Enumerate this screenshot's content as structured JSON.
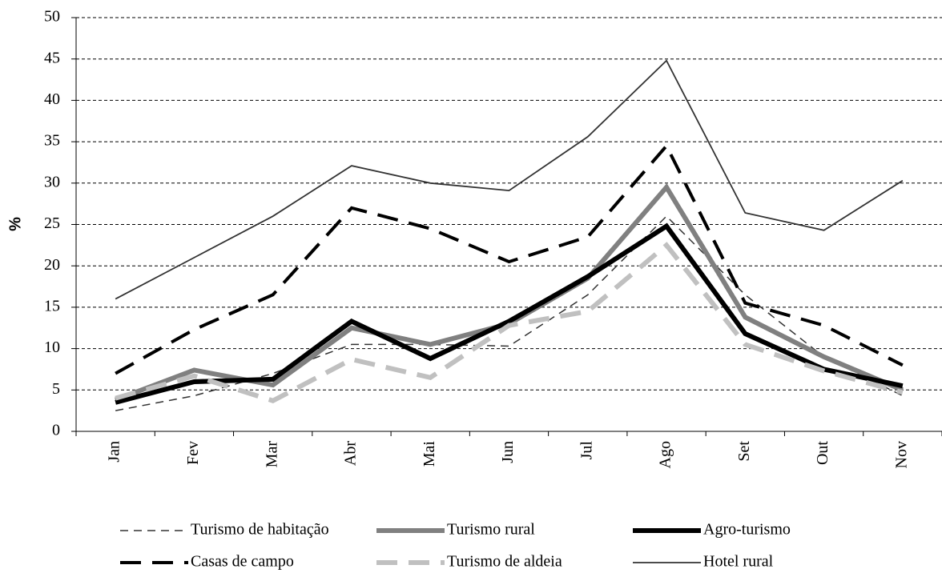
{
  "chart_data": {
    "type": "line",
    "y_label": "%",
    "categories": [
      "Jan",
      "Fev",
      "Mar",
      "Abr",
      "Mai",
      "Jun",
      "Jul",
      "Ago",
      "Set",
      "Out",
      "Nov"
    ],
    "ylim": [
      0,
      50
    ],
    "yticks": [
      0,
      5,
      10,
      15,
      20,
      25,
      30,
      35,
      40,
      45,
      50
    ],
    "grid": true,
    "legend": "bottom",
    "series": [
      {
        "name": "Turismo de habitação",
        "color": "#333333",
        "values": [
          2.5,
          4.3,
          7,
          10.5,
          10.5,
          10.3,
          16.5,
          26,
          16.5,
          9,
          4.3
        ]
      },
      {
        "name": "Turismo rural",
        "color": "#808080",
        "values": [
          3.8,
          7.4,
          5.6,
          12.5,
          10.5,
          13,
          18.5,
          29.5,
          13.8,
          9,
          5
        ]
      },
      {
        "name": "Agro-turismo",
        "color": "#000000",
        "values": [
          3.5,
          6,
          6.3,
          13.3,
          8.8,
          13.3,
          18.7,
          24.8,
          11.8,
          7.5,
          5.5
        ]
      },
      {
        "name": "Casas de campo",
        "color": "#000000",
        "values": [
          7,
          12.3,
          16.5,
          27,
          24.5,
          20.5,
          23.5,
          34.5,
          15.5,
          12.8,
          8
        ]
      },
      {
        "name": "Turismo de aldeia",
        "color": "#c0c0c0",
        "values": [
          4,
          6.7,
          3.7,
          8.7,
          6.5,
          12.8,
          14.5,
          22.5,
          10.5,
          7.3,
          4.7
        ]
      },
      {
        "name": "Hotel rural",
        "color": "#333333",
        "values": [
          16,
          21,
          26,
          32.1,
          30,
          29.1,
          35.6,
          44.8,
          26.4,
          24.3,
          30.3
        ]
      }
    ]
  }
}
